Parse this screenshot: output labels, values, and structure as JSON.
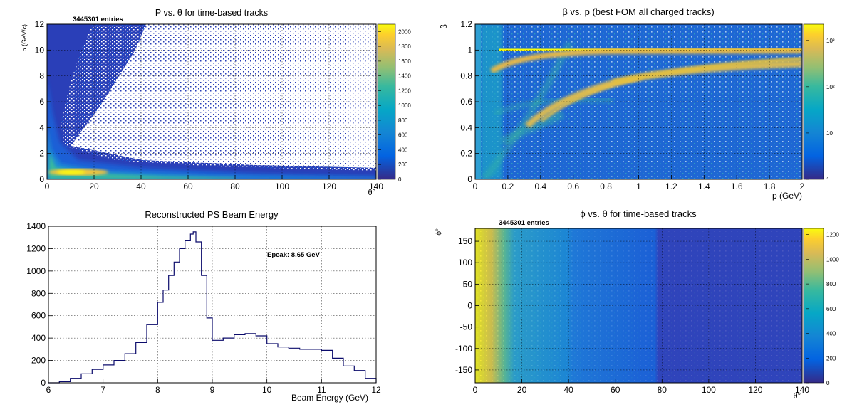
{
  "chart_data": [
    {
      "type": "heatmap",
      "title": "P vs. θ for time-based tracks",
      "xlabel": "θ°",
      "ylabel": "p (GeV/c)",
      "stats_label": "3445301 entries",
      "xlim": [
        0,
        140
      ],
      "ylim": [
        0,
        12
      ],
      "x_ticks": [
        0,
        20,
        40,
        60,
        80,
        100,
        120,
        140
      ],
      "y_ticks": [
        0,
        2,
        4,
        6,
        8,
        10,
        12
      ],
      "z_range": [
        0,
        2100
      ],
      "z_ticks": [
        0,
        200,
        400,
        600,
        800,
        1000,
        1200,
        1400,
        1600,
        1800,
        2000
      ],
      "grid": true,
      "colormap": "parula"
    },
    {
      "type": "heatmap",
      "title": "β vs. p (best FOM all charged tracks)",
      "xlabel": "p (GeV)",
      "ylabel": "β",
      "xlim": [
        0,
        2
      ],
      "ylim": [
        0,
        1.2
      ],
      "x_ticks": [
        "0",
        "0.2",
        "0.4",
        "0.6",
        "0.8",
        "1",
        "1.2",
        "1.4",
        "1.6",
        "1.8",
        "2"
      ],
      "y_ticks": [
        "0",
        "0.2",
        "0.4",
        "0.6",
        "0.8",
        "1",
        "1.2"
      ],
      "z_scale": "log",
      "z_ticks": [
        "1",
        "10",
        "10²",
        "10³"
      ],
      "grid": true,
      "colormap": "parula"
    },
    {
      "type": "line",
      "title": "Reconstructed PS Beam Energy",
      "xlabel": "Beam Energy (GeV)",
      "ylabel": "",
      "annotation": "Epeak: 8.65 GeV",
      "xlim": [
        6,
        12
      ],
      "ylim": [
        0,
        1400
      ],
      "x_ticks": [
        6,
        7,
        8,
        9,
        10,
        11,
        12
      ],
      "y_ticks": [
        0,
        200,
        400,
        600,
        800,
        1000,
        1200,
        1400
      ],
      "grid": true,
      "color": "#0b0b6b",
      "x": [
        6.0,
        6.2,
        6.4,
        6.6,
        6.8,
        7.0,
        7.2,
        7.4,
        7.6,
        7.8,
        8.0,
        8.1,
        8.2,
        8.3,
        8.4,
        8.5,
        8.6,
        8.65,
        8.7,
        8.8,
        8.9,
        9.0,
        9.2,
        9.4,
        9.6,
        9.8,
        10.0,
        10.2,
        10.4,
        10.6,
        10.8,
        11.0,
        11.2,
        11.4,
        11.6,
        11.8,
        12.0
      ],
      "y": [
        0,
        10,
        40,
        80,
        120,
        160,
        200,
        260,
        360,
        520,
        720,
        830,
        960,
        1080,
        1200,
        1270,
        1330,
        1350,
        1260,
        960,
        580,
        380,
        400,
        430,
        440,
        420,
        350,
        320,
        310,
        300,
        300,
        290,
        220,
        150,
        110,
        40,
        0
      ]
    },
    {
      "type": "heatmap",
      "title": "ϕ vs. θ for time-based tracks",
      "xlabel": "θ°",
      "ylabel": "ϕ°",
      "stats_label": "3445301 entries",
      "xlim": [
        0,
        140
      ],
      "ylim": [
        -180,
        180
      ],
      "x_ticks": [
        0,
        20,
        40,
        60,
        80,
        100,
        120,
        140
      ],
      "y_ticks": [
        -150,
        -100,
        -50,
        0,
        50,
        100,
        150
      ],
      "z_range": [
        0,
        1250
      ],
      "z_ticks": [
        0,
        200,
        400,
        600,
        800,
        1000,
        1200
      ],
      "grid": true,
      "colormap": "parula"
    }
  ]
}
